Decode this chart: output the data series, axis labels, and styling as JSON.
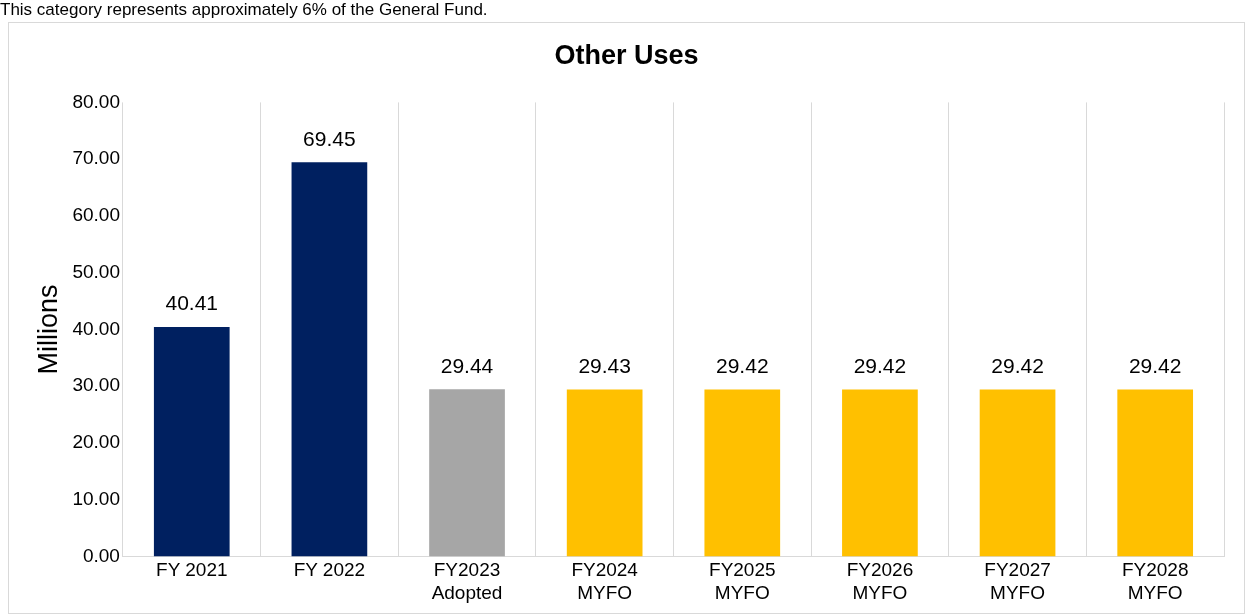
{
  "chart_data": {
    "type": "bar",
    "title": "Other Uses",
    "ylabel": "Millions",
    "annotations": [
      "This category represents approximately 6% of the General Fund."
    ],
    "categories": [
      "FY 2021",
      "FY 2022",
      "FY2023\nAdopted",
      "FY2024\nMYFO",
      "FY2025\nMYFO",
      "FY2026\nMYFO",
      "FY2027\nMYFO",
      "FY2028\nMYFO"
    ],
    "values": [
      40.41,
      69.45,
      29.44,
      29.43,
      29.42,
      29.42,
      29.42,
      29.42
    ],
    "colors": [
      "#002060",
      "#002060",
      "#a6a6a6",
      "#ffc000",
      "#ffc000",
      "#ffc000",
      "#ffc000",
      "#ffc000"
    ],
    "ylim": [
      0,
      80
    ],
    "yticks": [
      {
        "value": 0,
        "label": "0.00"
      },
      {
        "value": 10,
        "label": "10.00"
      },
      {
        "value": 20,
        "label": "20.00"
      },
      {
        "value": 30,
        "label": "30.00"
      },
      {
        "value": 40,
        "label": "40.00"
      },
      {
        "value": 50,
        "label": "50.00"
      },
      {
        "value": 60,
        "label": "60.00"
      },
      {
        "value": 70,
        "label": "70.00"
      },
      {
        "value": 80,
        "label": "80.00"
      }
    ],
    "grid": "x",
    "legend": false,
    "data_labels": true
  }
}
